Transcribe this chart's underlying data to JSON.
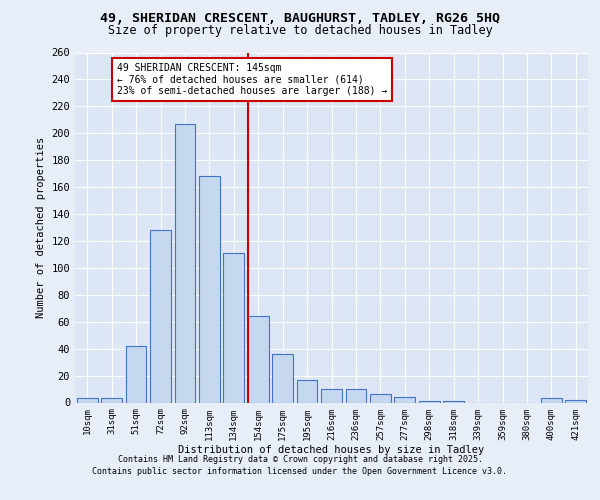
{
  "title_line1": "49, SHERIDAN CRESCENT, BAUGHURST, TADLEY, RG26 5HQ",
  "title_line2": "Size of property relative to detached houses in Tadley",
  "xlabel": "Distribution of detached houses by size in Tadley",
  "ylabel": "Number of detached properties",
  "bar_labels": [
    "10sqm",
    "31sqm",
    "51sqm",
    "72sqm",
    "92sqm",
    "113sqm",
    "134sqm",
    "154sqm",
    "175sqm",
    "195sqm",
    "216sqm",
    "236sqm",
    "257sqm",
    "277sqm",
    "298sqm",
    "318sqm",
    "339sqm",
    "359sqm",
    "380sqm",
    "400sqm",
    "421sqm"
  ],
  "bar_values": [
    3,
    3,
    42,
    128,
    207,
    168,
    111,
    64,
    36,
    17,
    10,
    10,
    6,
    4,
    1,
    1,
    0,
    0,
    0,
    3,
    2
  ],
  "bar_color": "#c5d8f0",
  "bar_edge_color": "#4472c4",
  "ref_line_label": "49 SHERIDAN CRESCENT: 145sqm",
  "annotation_line1": "← 76% of detached houses are smaller (614)",
  "annotation_line2": "23% of semi-detached houses are larger (188) →",
  "annotation_box_color": "#ffffff",
  "annotation_box_edge": "#cc0000",
  "ref_line_color": "#cc0000",
  "ref_line_xindex": 6.575,
  "ylim": [
    0,
    260
  ],
  "yticks": [
    0,
    20,
    40,
    60,
    80,
    100,
    120,
    140,
    160,
    180,
    200,
    220,
    240,
    260
  ],
  "footer_line1": "Contains HM Land Registry data © Crown copyright and database right 2025.",
  "footer_line2": "Contains public sector information licensed under the Open Government Licence v3.0.",
  "background_color": "#e8eef8",
  "plot_background": "#dce6f5"
}
